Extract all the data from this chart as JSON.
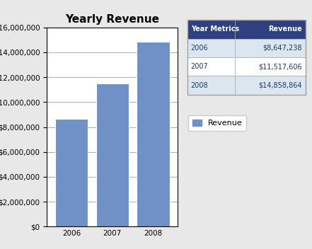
{
  "title": "Yearly Revenue",
  "years": [
    "2006",
    "2007",
    "2008"
  ],
  "values": [
    8647238,
    11517606,
    14858864
  ],
  "bar_color": "#7090c8",
  "background_color": "#e8e8e8",
  "plot_bg_color": "#ffffff",
  "ylim": [
    0,
    16000000
  ],
  "yticks": [
    0,
    2000000,
    4000000,
    6000000,
    8000000,
    10000000,
    12000000,
    14000000,
    16000000
  ],
  "legend_label": "Revenue",
  "table_headers": [
    "Year Metrics",
    "Revenue"
  ],
  "table_rows": [
    [
      "2006",
      "$8,647,238"
    ],
    [
      "2007",
      "$11,517,606"
    ],
    [
      "2008",
      "$14,858,864"
    ]
  ],
  "table_header_bg": "#2e4080",
  "table_header_text": "#ffffff",
  "table_row_text": "#1f3864",
  "table_row_colors": [
    "#dce6f1",
    "#ffffff",
    "#dce6f1"
  ],
  "table_border_color": "#a0a0a0",
  "title_fontsize": 11,
  "tick_fontsize": 7.5,
  "legend_fontsize": 8
}
